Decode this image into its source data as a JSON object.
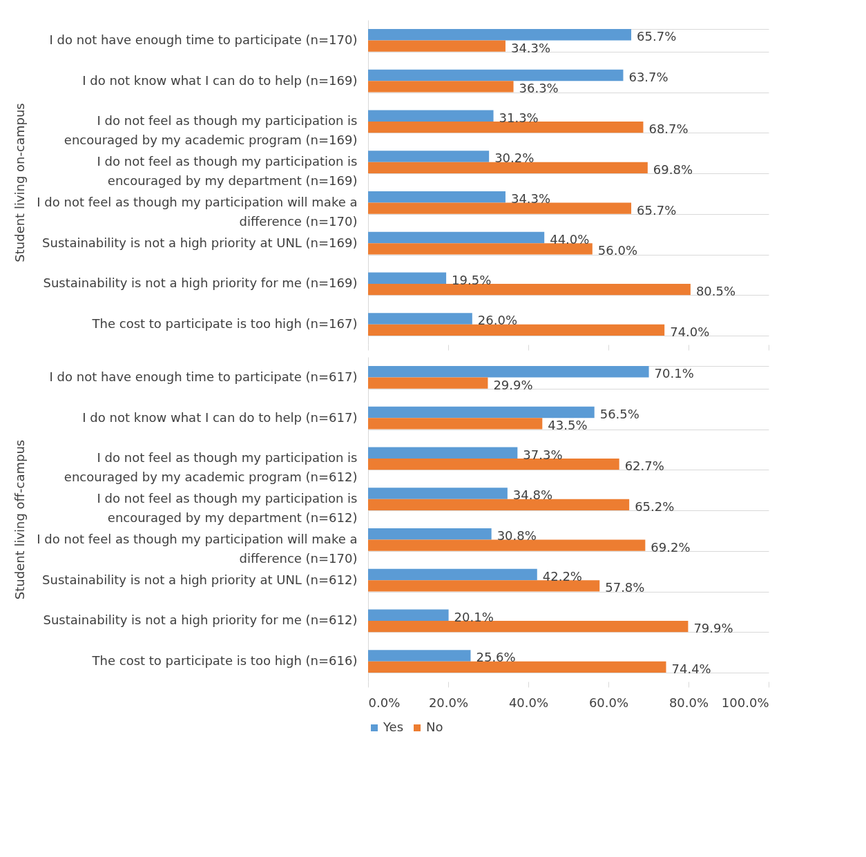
{
  "chart_data": [
    {
      "type": "bar",
      "orientation": "horizontal",
      "ylabel": "Student living on-campus",
      "tick_labels": "y",
      "legend": "bottom",
      "grid": "y",
      "categories": [
        "I do not have enough time to participate (n=170)",
        "I do not know what I can do to help (n=169)",
        "I do not feel as though my participation is encouraged by my academic program (n=169)",
        "I do not feel as though my participation is encouraged by my department (n=169)",
        "I do not feel as though my participation will make a difference (n=170)",
        "Sustainability is not a high priority at UNL (n=169)",
        "Sustainability is not a high priority for me (n=169)",
        "The cost to participate is too high (n=167)"
      ],
      "xlim": [
        0,
        100
      ],
      "xticks": [
        {
          "value": 0,
          "label": null
        },
        {
          "value": 20,
          "label": null
        },
        {
          "value": 40,
          "label": null
        },
        {
          "value": 60,
          "label": null
        },
        {
          "value": 80,
          "label": null
        },
        {
          "value": 100,
          "label": null
        }
      ],
      "series": [
        {
          "name": "Yes",
          "color": "#5b9bd5",
          "values": [
            65.7,
            63.7,
            31.3,
            30.2,
            34.3,
            44.0,
            19.5,
            26.0
          ],
          "value_labels": [
            "65.7%",
            "63.7%",
            "31.3%",
            "30.2%",
            "34.3%",
            "44.0%",
            "19.5%",
            "26.0%"
          ]
        },
        {
          "name": "No",
          "color": "#ed7d31",
          "values": [
            34.3,
            36.3,
            68.7,
            69.8,
            65.7,
            56.0,
            80.5,
            74.0
          ],
          "value_labels": [
            "34.3%",
            "36.3%",
            "68.7%",
            "69.8%",
            "65.7%",
            "56.0%",
            "80.5%",
            "74.0%"
          ]
        }
      ]
    },
    {
      "type": "bar",
      "orientation": "horizontal",
      "ylabel": "Student living off-campus",
      "legend": "bottom",
      "grid": "y",
      "categories": [
        "I do not have enough time to participate (n=617)",
        "I do not know what I can do to help (n=617)",
        "I do not feel as though my participation is encouraged by my academic program (n=612)",
        "I do not feel as though my participation is encouraged by my department (n=612)",
        "I do not feel as though my participation will make a difference (n=170)",
        "Sustainability is not a high priority at UNL (n=612)",
        "Sustainability is not a high priority for me (n=612)",
        "The cost to participate is too high (n=616)"
      ],
      "xlim": [
        0,
        100
      ],
      "xticks": [
        {
          "value": 0,
          "label": "0.0%"
        },
        {
          "value": 20,
          "label": "20.0%"
        },
        {
          "value": 40,
          "label": "40.0%"
        },
        {
          "value": 60,
          "label": "60.0%"
        },
        {
          "value": 80,
          "label": "80.0%"
        },
        {
          "value": 100,
          "label": "100.0%"
        }
      ],
      "series": [
        {
          "name": "Yes",
          "color": "#5b9bd5",
          "values": [
            70.1,
            56.5,
            37.3,
            34.8,
            30.8,
            42.2,
            20.1,
            25.6
          ],
          "value_labels": [
            "70.1%",
            "56.5%",
            "37.3%",
            "34.8%",
            "30.8%",
            "42.2%",
            "20.1%",
            "25.6%"
          ]
        },
        {
          "name": "No",
          "color": "#ed7d31",
          "values": [
            29.9,
            43.5,
            62.7,
            65.2,
            69.2,
            57.8,
            79.9,
            74.4
          ],
          "value_labels": [
            "29.9%",
            "43.5%",
            "62.7%",
            "65.2%",
            "69.2%",
            "57.8%",
            "79.9%",
            "74.4%"
          ]
        }
      ]
    }
  ]
}
